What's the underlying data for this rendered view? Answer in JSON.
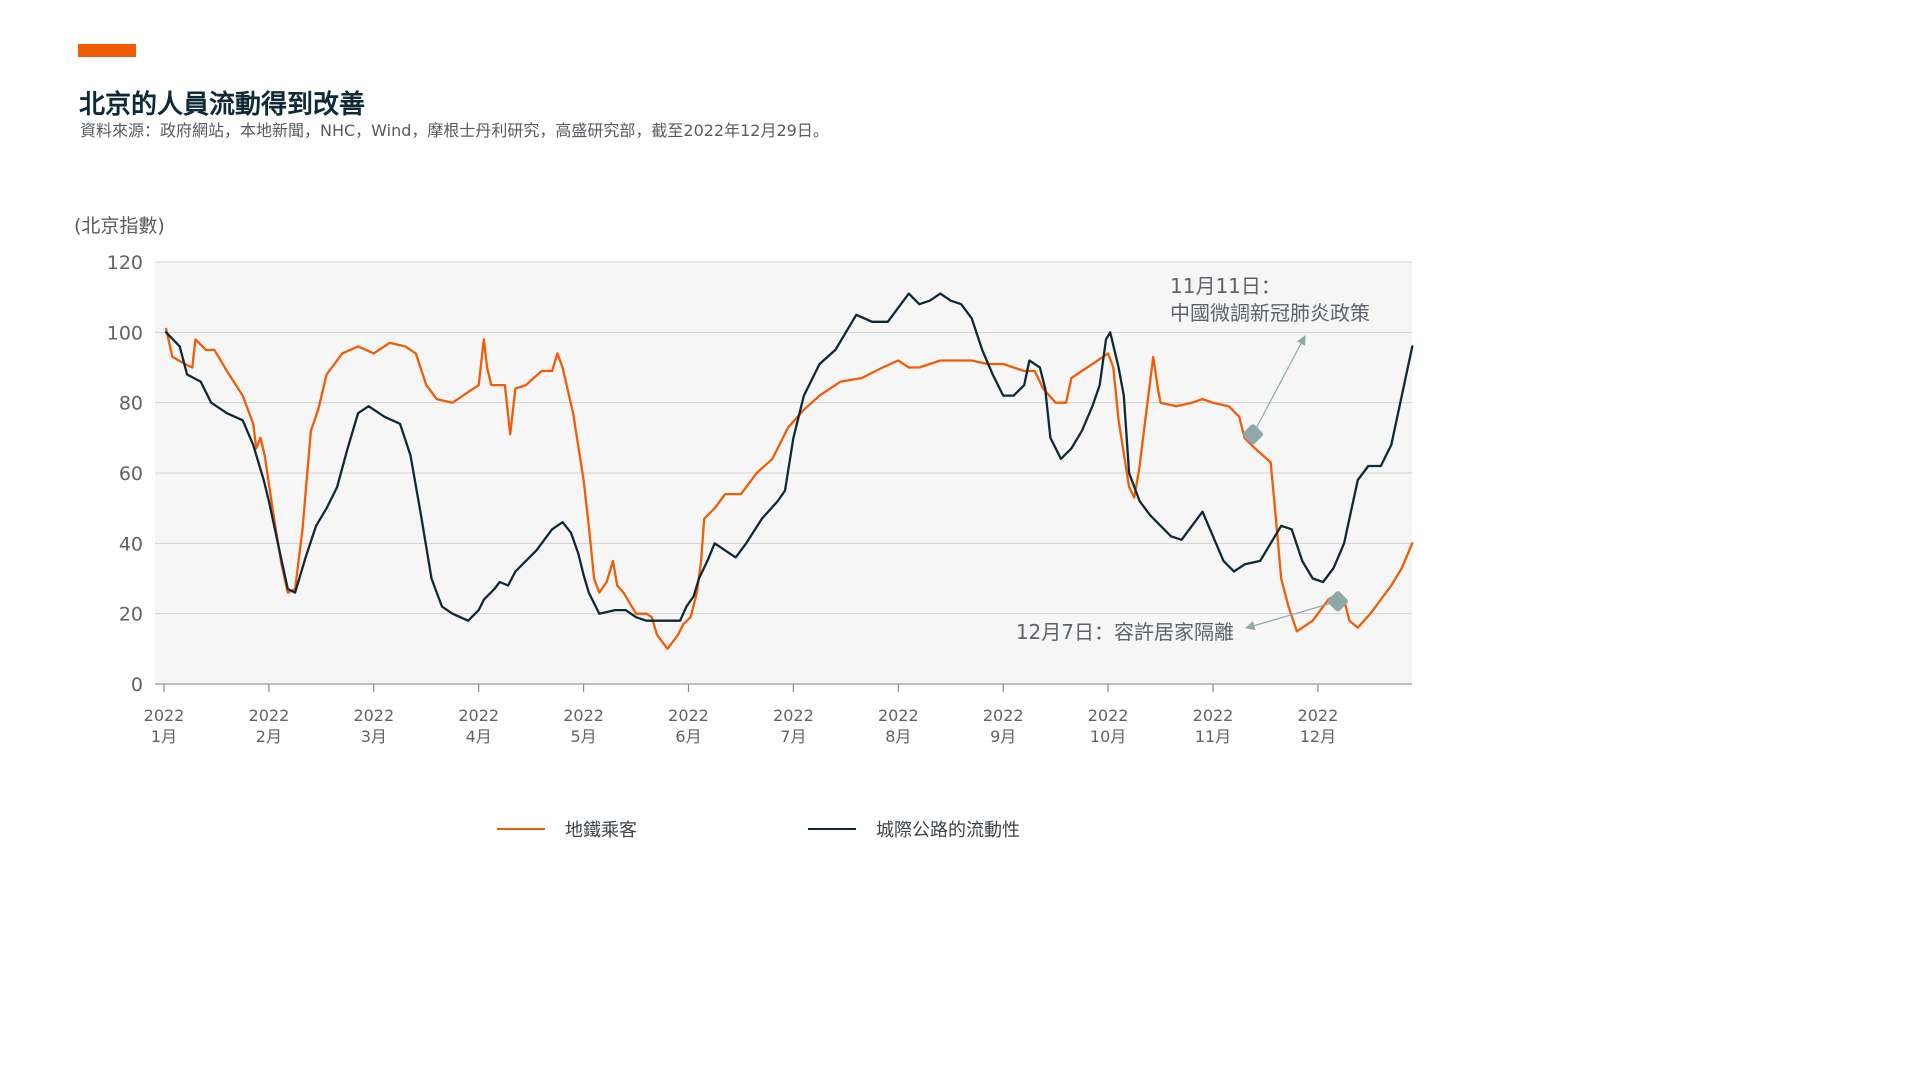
{
  "header": {
    "title": "北京的人員流動得到改善",
    "subtitle": "資料來源：政府網站，本地新聞，NHC，Wind，摩根士丹利研究，高盛研究部，截至2022年12月29日。",
    "accent_color": "#f25c05"
  },
  "chart_data": {
    "type": "line",
    "title": "北京的人員流動得到改善",
    "ylabel": "(北京指數)",
    "xlabel": "",
    "ylim": [
      0,
      120
    ],
    "yticks": [
      0,
      20,
      40,
      60,
      80,
      100,
      120
    ],
    "grid": true,
    "xlim": [
      0,
      11.9
    ],
    "xticks": [
      {
        "year": "2022",
        "month": "1月"
      },
      {
        "year": "2022",
        "month": "2月"
      },
      {
        "year": "2022",
        "month": "3月"
      },
      {
        "year": "2022",
        "month": "4月"
      },
      {
        "year": "2022",
        "month": "5月"
      },
      {
        "year": "2022",
        "month": "6月"
      },
      {
        "year": "2022",
        "month": "7月"
      },
      {
        "year": "2022",
        "month": "8月"
      },
      {
        "year": "2022",
        "month": "9月"
      },
      {
        "year": "2022",
        "month": "10月"
      },
      {
        "year": "2022",
        "month": "11月"
      },
      {
        "year": "2022",
        "month": "12月"
      }
    ],
    "legend_position": "bottom",
    "series": [
      {
        "name": "地鐵乘客",
        "color": "#f25c05",
        "points": [
          [
            0.02,
            101
          ],
          [
            0.08,
            93
          ],
          [
            0.2,
            91
          ],
          [
            0.27,
            90
          ],
          [
            0.3,
            98
          ],
          [
            0.4,
            95
          ],
          [
            0.48,
            95
          ],
          [
            0.6,
            89
          ],
          [
            0.75,
            82
          ],
          [
            0.85,
            74
          ],
          [
            0.88,
            67
          ],
          [
            0.92,
            70
          ],
          [
            0.96,
            65
          ],
          [
            1.05,
            47
          ],
          [
            1.12,
            34
          ],
          [
            1.18,
            26
          ],
          [
            1.25,
            27
          ],
          [
            1.32,
            44
          ],
          [
            1.4,
            72
          ],
          [
            1.47,
            78
          ],
          [
            1.55,
            88
          ],
          [
            1.7,
            94
          ],
          [
            1.85,
            96
          ],
          [
            2.0,
            94
          ],
          [
            2.15,
            97
          ],
          [
            2.3,
            96
          ],
          [
            2.4,
            94
          ],
          [
            2.5,
            85
          ],
          [
            2.6,
            81
          ],
          [
            2.75,
            80
          ],
          [
            2.85,
            82
          ],
          [
            2.95,
            84
          ],
          [
            3.0,
            85
          ],
          [
            3.05,
            98
          ],
          [
            3.08,
            90
          ],
          [
            3.12,
            85
          ],
          [
            3.25,
            85
          ],
          [
            3.3,
            71
          ],
          [
            3.35,
            84
          ],
          [
            3.45,
            85
          ],
          [
            3.6,
            89
          ],
          [
            3.7,
            89
          ],
          [
            3.75,
            94
          ],
          [
            3.8,
            90
          ],
          [
            3.9,
            77
          ],
          [
            4.0,
            58
          ],
          [
            4.05,
            45
          ],
          [
            4.1,
            30
          ],
          [
            4.15,
            26
          ],
          [
            4.22,
            29
          ],
          [
            4.28,
            35
          ],
          [
            4.32,
            28
          ],
          [
            4.38,
            26
          ],
          [
            4.5,
            20
          ],
          [
            4.6,
            20
          ],
          [
            4.65,
            19
          ],
          [
            4.7,
            14
          ],
          [
            4.8,
            10
          ],
          [
            4.85,
            12
          ],
          [
            4.9,
            14
          ],
          [
            4.95,
            17
          ],
          [
            5.02,
            19
          ],
          [
            5.08,
            26
          ],
          [
            5.12,
            35
          ],
          [
            5.15,
            47
          ],
          [
            5.25,
            50
          ],
          [
            5.35,
            54
          ],
          [
            5.5,
            54
          ],
          [
            5.65,
            60
          ],
          [
            5.8,
            64
          ],
          [
            5.95,
            73
          ],
          [
            6.1,
            78
          ],
          [
            6.25,
            82
          ],
          [
            6.45,
            86
          ],
          [
            6.65,
            87
          ],
          [
            6.85,
            90
          ],
          [
            7.0,
            92
          ],
          [
            7.1,
            90
          ],
          [
            7.2,
            90
          ],
          [
            7.3,
            91
          ],
          [
            7.4,
            92
          ],
          [
            7.5,
            92
          ],
          [
            7.6,
            92
          ],
          [
            7.7,
            92
          ],
          [
            7.85,
            91
          ],
          [
            8.0,
            91
          ],
          [
            8.1,
            90
          ],
          [
            8.2,
            89
          ],
          [
            8.3,
            89
          ],
          [
            8.38,
            84
          ],
          [
            8.5,
            80
          ],
          [
            8.6,
            80
          ],
          [
            8.65,
            87
          ],
          [
            8.75,
            89
          ],
          [
            8.85,
            91
          ],
          [
            8.95,
            93
          ],
          [
            9.0,
            94
          ],
          [
            9.05,
            90
          ],
          [
            9.1,
            75
          ],
          [
            9.2,
            56
          ],
          [
            9.25,
            53
          ],
          [
            9.3,
            62
          ],
          [
            9.35,
            74
          ],
          [
            9.4,
            86
          ],
          [
            9.43,
            93
          ],
          [
            9.48,
            83
          ],
          [
            9.5,
            80
          ],
          [
            9.65,
            79
          ],
          [
            9.8,
            80
          ],
          [
            9.9,
            81
          ],
          [
            10.0,
            80
          ],
          [
            10.15,
            79
          ],
          [
            10.25,
            76
          ],
          [
            10.3,
            70
          ],
          [
            10.4,
            67
          ],
          [
            10.55,
            63
          ],
          [
            10.6,
            47
          ],
          [
            10.65,
            30
          ],
          [
            10.72,
            22
          ],
          [
            10.8,
            15
          ],
          [
            10.95,
            18
          ],
          [
            11.1,
            24
          ],
          [
            11.2,
            26
          ],
          [
            11.25,
            24
          ],
          [
            11.3,
            18
          ],
          [
            11.38,
            16
          ],
          [
            11.5,
            20
          ],
          [
            11.7,
            28
          ],
          [
            11.8,
            33
          ],
          [
            11.9,
            40
          ]
        ]
      },
      {
        "name": "城際公路的流動性",
        "color": "#0d2a36",
        "points": [
          [
            0.02,
            100
          ],
          [
            0.15,
            96
          ],
          [
            0.22,
            88
          ],
          [
            0.35,
            86
          ],
          [
            0.45,
            80
          ],
          [
            0.6,
            77
          ],
          [
            0.75,
            75
          ],
          [
            0.85,
            68
          ],
          [
            0.95,
            58
          ],
          [
            1.0,
            52
          ],
          [
            1.1,
            38
          ],
          [
            1.18,
            27
          ],
          [
            1.25,
            26
          ],
          [
            1.35,
            36
          ],
          [
            1.45,
            45
          ],
          [
            1.55,
            50
          ],
          [
            1.65,
            56
          ],
          [
            1.75,
            67
          ],
          [
            1.85,
            77
          ],
          [
            1.95,
            79
          ],
          [
            2.1,
            76
          ],
          [
            2.25,
            74
          ],
          [
            2.35,
            65
          ],
          [
            2.45,
            48
          ],
          [
            2.55,
            30
          ],
          [
            2.65,
            22
          ],
          [
            2.75,
            20
          ],
          [
            2.9,
            18
          ],
          [
            3.0,
            21
          ],
          [
            3.05,
            24
          ],
          [
            3.15,
            27
          ],
          [
            3.2,
            29
          ],
          [
            3.28,
            28
          ],
          [
            3.35,
            32
          ],
          [
            3.45,
            35
          ],
          [
            3.55,
            38
          ],
          [
            3.7,
            44
          ],
          [
            3.8,
            46
          ],
          [
            3.88,
            43
          ],
          [
            3.95,
            37
          ],
          [
            4.0,
            31
          ],
          [
            4.05,
            26
          ],
          [
            4.15,
            20
          ],
          [
            4.3,
            21
          ],
          [
            4.4,
            21
          ],
          [
            4.5,
            19
          ],
          [
            4.6,
            18
          ],
          [
            4.8,
            18
          ],
          [
            4.92,
            18
          ],
          [
            4.98,
            22
          ],
          [
            5.05,
            25
          ],
          [
            5.1,
            30
          ],
          [
            5.18,
            35
          ],
          [
            5.25,
            40
          ],
          [
            5.35,
            38
          ],
          [
            5.45,
            36
          ],
          [
            5.55,
            40
          ],
          [
            5.7,
            47
          ],
          [
            5.85,
            52
          ],
          [
            5.92,
            55
          ],
          [
            6.0,
            70
          ],
          [
            6.1,
            82
          ],
          [
            6.25,
            91
          ],
          [
            6.4,
            95
          ],
          [
            6.6,
            105
          ],
          [
            6.75,
            103
          ],
          [
            6.9,
            103
          ],
          [
            7.0,
            107
          ],
          [
            7.1,
            111
          ],
          [
            7.2,
            108
          ],
          [
            7.3,
            109
          ],
          [
            7.4,
            111
          ],
          [
            7.5,
            109
          ],
          [
            7.6,
            108
          ],
          [
            7.7,
            104
          ],
          [
            7.8,
            95
          ],
          [
            7.9,
            88
          ],
          [
            8.0,
            82
          ],
          [
            8.1,
            82
          ],
          [
            8.2,
            85
          ],
          [
            8.25,
            92
          ],
          [
            8.35,
            90
          ],
          [
            8.4,
            84
          ],
          [
            8.45,
            70
          ],
          [
            8.55,
            64
          ],
          [
            8.65,
            67
          ],
          [
            8.75,
            72
          ],
          [
            8.85,
            79
          ],
          [
            8.92,
            85
          ],
          [
            8.98,
            98
          ],
          [
            9.02,
            100
          ],
          [
            9.1,
            90
          ],
          [
            9.15,
            82
          ],
          [
            9.2,
            60
          ],
          [
            9.3,
            52
          ],
          [
            9.4,
            48
          ],
          [
            9.5,
            45
          ],
          [
            9.6,
            42
          ],
          [
            9.7,
            41
          ],
          [
            9.8,
            45
          ],
          [
            9.9,
            49
          ],
          [
            10.0,
            42
          ],
          [
            10.1,
            35
          ],
          [
            10.2,
            32
          ],
          [
            10.3,
            34
          ],
          [
            10.45,
            35
          ],
          [
            10.55,
            40
          ],
          [
            10.65,
            45
          ],
          [
            10.75,
            44
          ],
          [
            10.85,
            35
          ],
          [
            10.95,
            30
          ],
          [
            11.05,
            29
          ],
          [
            11.15,
            33
          ],
          [
            11.25,
            40
          ],
          [
            11.3,
            47
          ],
          [
            11.38,
            58
          ],
          [
            11.48,
            62
          ],
          [
            11.6,
            62
          ],
          [
            11.7,
            68
          ],
          [
            11.8,
            82
          ],
          [
            11.9,
            96
          ]
        ]
      }
    ],
    "annotations": [
      {
        "line1": "11月11日：",
        "line2": "中國微調新冠肺炎政策",
        "marker_x": 10.38,
        "marker_y": 71,
        "color": "#8fa9a8"
      },
      {
        "text": "12月7日：容許居家隔離",
        "marker_x": 11.19,
        "marker_y": 23.5,
        "color": "#8fa9a8"
      }
    ]
  }
}
